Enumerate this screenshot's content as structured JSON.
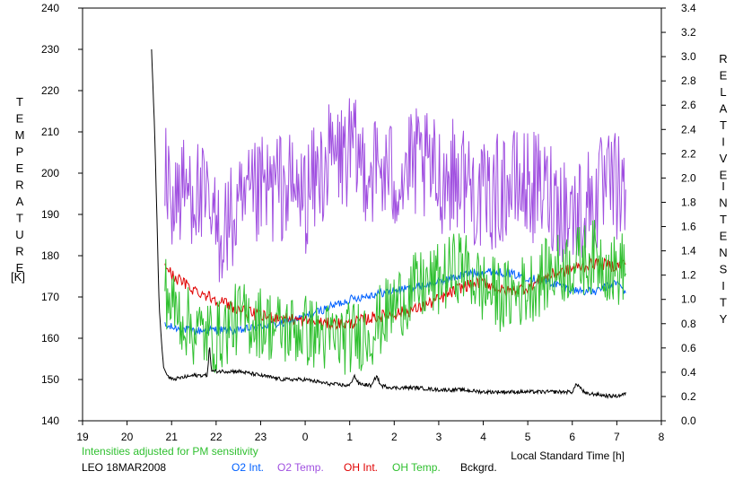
{
  "chart_data": {
    "type": "line",
    "left_axis_label": "TEMPERATURE",
    "left_axis_unit": "[K]",
    "right_axis_label_words": [
      "RELATIVE",
      "INTENSITY"
    ],
    "xlabel": "Local Standard Time [h]",
    "x_tick_labels": [
      "19",
      "20",
      "21",
      "22",
      "23",
      "0",
      "1",
      "2",
      "3",
      "4",
      "5",
      "6",
      "7",
      "8"
    ],
    "x_range_hours": [
      19,
      32
    ],
    "ylim_left": [
      140,
      240
    ],
    "ylim_right": [
      0.0,
      3.4
    ],
    "left_ticks": [
      "240",
      "230",
      "220",
      "210",
      "200",
      "190",
      "180",
      "170",
      "160",
      "150",
      "140"
    ],
    "right_ticks": [
      "3.4",
      "3.2",
      "3.0",
      "2.8",
      "2.6",
      "2.4",
      "2.2",
      "2.0",
      "1.8",
      "1.6",
      "1.4",
      "1.2",
      "1.0",
      "0.8",
      "0.6",
      "0.4",
      "0.2",
      "0.0"
    ],
    "note": "Intensities adjusted for PM sensitivity",
    "station_label": "LEO 18MAR2008",
    "grid": false,
    "legend_position": "bottom",
    "series": [
      {
        "name": "O2 Int.",
        "axis": "right",
        "color": "#0060ff",
        "x": [
          20.85,
          21.0,
          21.5,
          22.0,
          22.5,
          23.0,
          23.5,
          24.0,
          24.5,
          25.0,
          25.5,
          26.0,
          26.5,
          27.0,
          27.5,
          28.0,
          28.5,
          29.0,
          29.5,
          30.0,
          30.5,
          31.0,
          31.2
        ],
        "y": [
          0.78,
          0.77,
          0.74,
          0.75,
          0.74,
          0.78,
          0.8,
          0.86,
          0.93,
          1.0,
          1.04,
          1.07,
          1.1,
          1.14,
          1.2,
          1.23,
          1.22,
          1.18,
          1.14,
          1.08,
          1.06,
          1.14,
          1.06
        ]
      },
      {
        "name": "O2 Temp.",
        "axis": "left",
        "color": "#a050e0",
        "x": [
          20.85,
          21.0,
          21.5,
          22.0,
          22.5,
          23.0,
          23.5,
          24.0,
          24.5,
          25.0,
          25.5,
          26.0,
          26.5,
          27.0,
          27.5,
          28.0,
          28.5,
          29.0,
          29.5,
          30.0,
          30.5,
          31.0,
          31.2
        ],
        "y": [
          199,
          194,
          197,
          186,
          189,
          195,
          197,
          194,
          203,
          205,
          201,
          199,
          202,
          199,
          200,
          193,
          197,
          197,
          195,
          190,
          194,
          197,
          192
        ]
      },
      {
        "name": "OH Int.",
        "axis": "right",
        "color": "#e00000",
        "x": [
          20.85,
          21.0,
          21.5,
          22.0,
          22.5,
          23.0,
          23.5,
          24.0,
          24.5,
          25.0,
          25.5,
          26.0,
          26.5,
          27.0,
          27.5,
          28.0,
          28.5,
          29.0,
          29.5,
          30.0,
          30.5,
          31.0,
          31.2
        ],
        "y": [
          1.3,
          1.2,
          1.08,
          1.0,
          0.92,
          0.86,
          0.85,
          0.82,
          0.8,
          0.8,
          0.85,
          0.88,
          0.92,
          1.0,
          1.1,
          1.15,
          1.06,
          1.1,
          1.2,
          1.25,
          1.3,
          1.27,
          1.31
        ]
      },
      {
        "name": "OH Temp.",
        "axis": "left",
        "color": "#30c030",
        "x": [
          20.85,
          21.0,
          21.5,
          22.0,
          22.5,
          23.0,
          23.5,
          24.0,
          24.5,
          25.0,
          25.5,
          26.0,
          26.5,
          27.0,
          27.5,
          28.0,
          28.5,
          29.0,
          29.5,
          30.0,
          30.5,
          31.0,
          31.2
        ],
        "y": [
          172,
          168,
          162,
          160,
          165,
          164,
          162,
          162,
          160,
          160,
          162,
          168,
          172,
          174,
          178,
          172,
          170,
          172,
          176,
          178,
          180,
          176,
          178
        ]
      },
      {
        "name": "Bckgrd.",
        "axis": "left",
        "color": "#000000",
        "x": [
          20.55,
          20.62,
          20.68,
          20.72,
          20.78,
          20.82,
          20.9,
          21.0,
          21.5,
          21.8,
          21.85,
          21.9,
          22.0,
          22.5,
          23.0,
          23.5,
          24.0,
          24.5,
          25.0,
          25.1,
          25.2,
          25.5,
          25.6,
          25.7,
          26.0,
          26.5,
          27.0,
          27.5,
          28.0,
          28.5,
          29.0,
          29.5,
          30.0,
          30.1,
          30.3,
          30.5,
          30.8,
          31.0,
          31.2
        ],
        "y": [
          230,
          210,
          185,
          168,
          158,
          153,
          151,
          150,
          151,
          151,
          158,
          152,
          152,
          152,
          151,
          150,
          150,
          149,
          148.5,
          151,
          149,
          148.5,
          151,
          148.5,
          148,
          148,
          147.5,
          147.5,
          147,
          147,
          147,
          147,
          147,
          149,
          146.5,
          146.5,
          146,
          146,
          146.5
        ]
      }
    ]
  }
}
